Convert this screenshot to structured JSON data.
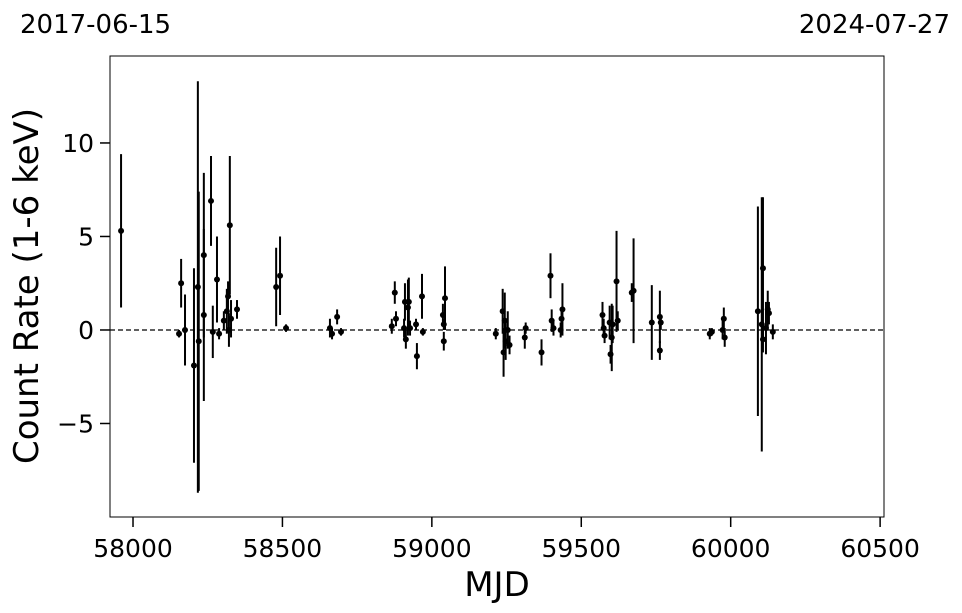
{
  "chart_data": {
    "type": "scatter",
    "annotations": [
      "2017-06-15",
      "2024-07-27"
    ],
    "xlabel": "MJD",
    "ylabel": "Count Rate (1-6 keV)",
    "xlim": [
      57923,
      60513
    ],
    "ylim": [
      -10,
      14.65
    ],
    "xticks": [
      58000,
      58500,
      59000,
      59500,
      60000,
      60500
    ],
    "yticks": [
      {
        "value": -5,
        "label": "−5"
      },
      0,
      5,
      10
    ],
    "hline": 0,
    "color": "#000000",
    "x": [
      57960,
      58161,
      58154,
      58174,
      58204,
      58217,
      58220,
      58237,
      58237,
      58261,
      58267,
      58281,
      58288,
      58304,
      58314,
      58318,
      58321,
      58324,
      58328,
      58348,
      58479,
      58492,
      58512,
      58659,
      58666,
      58683,
      58696,
      58866,
      58876,
      58880,
      58907,
      58910,
      58913,
      58920,
      58923,
      58927,
      58947,
      58950,
      58967,
      58970,
      59037,
      59040,
      59044,
      59040,
      59214,
      59237,
      59240,
      59244,
      59247,
      59254,
      59260,
      59311,
      59314,
      59367,
      59397,
      59401,
      59407,
      59431,
      59434,
      59437,
      59571,
      59575,
      59578,
      59595,
      59598,
      59602,
      59605,
      59618,
      59622,
      59669,
      59675,
      59736,
      59763,
      59763,
      59766,
      59930,
      59937,
      59973,
      59977,
      59980,
      60091,
      60104,
      60108,
      60108,
      60118,
      60124,
      60128,
      60141
    ],
    "values": [
      5.3,
      2.5,
      -0.2,
      0,
      -1.9,
      2.3,
      -0.6,
      4.0,
      0.8,
      6.9,
      -0.1,
      2.7,
      -0.2,
      0.5,
      1.0,
      1.8,
      0,
      5.6,
      0.6,
      1.1,
      2.3,
      2.9,
      0.1,
      0.1,
      -0.2,
      0.7,
      -0.1,
      0.2,
      2.0,
      0.6,
      0.1,
      1.5,
      -0.5,
      1.2,
      1.5,
      0.1,
      0.3,
      -1.4,
      1.8,
      -0.1,
      0.8,
      -0.6,
      1.7,
      0.3,
      -0.2,
      1.0,
      -1.2,
      0.5,
      -0.6,
      0.0,
      -0.8,
      -0.4,
      0.1,
      -1.2,
      2.9,
      0.5,
      0.1,
      0.0,
      0.6,
      1.1,
      0.8,
      0.1,
      -0.3,
      0.4,
      -1.3,
      -0.4,
      0.3,
      2.6,
      0.5,
      2.0,
      2.1,
      0.4,
      0.7,
      -1.1,
      0.4,
      -0.2,
      -0.1,
      0.0,
      0.6,
      -0.4,
      1.0,
      0.3,
      3.3,
      -0.5,
      0.1,
      1.1,
      0.9,
      -0.1
    ],
    "yerr": [
      4.1,
      1.3,
      0.2,
      1.9,
      5.2,
      11,
      8,
      4.4,
      4.6,
      2.4,
      1.4,
      2.3,
      0.3,
      0.5,
      1.2,
      0.8,
      0.9,
      3.7,
      1.0,
      0.5,
      2.1,
      2.1,
      0.2,
      0.5,
      0.3,
      0.4,
      0.2,
      0.4,
      0.6,
      0.4,
      0.5,
      1.0,
      0.5,
      1.5,
      1.3,
      0.4,
      0.3,
      0.7,
      1.2,
      0.2,
      0.6,
      0.5,
      1.7,
      0.3,
      0.3,
      1.2,
      1.3,
      1.5,
      1.0,
      1.0,
      0.5,
      0.6,
      0.3,
      0.7,
      1.2,
      0.6,
      0.4,
      0.4,
      0.6,
      1.4,
      0.7,
      0.5,
      0.4,
      0.9,
      0.5,
      1.8,
      1.0,
      2.7,
      0.5,
      0.5,
      2.8,
      2.0,
      1.4,
      0.5,
      0.4,
      0.3,
      0.2,
      0.5,
      0.6,
      0.5,
      5.6,
      6.8,
      3.8,
      0.7,
      1.4,
      1.0,
      0.6,
      0.4
    ]
  }
}
